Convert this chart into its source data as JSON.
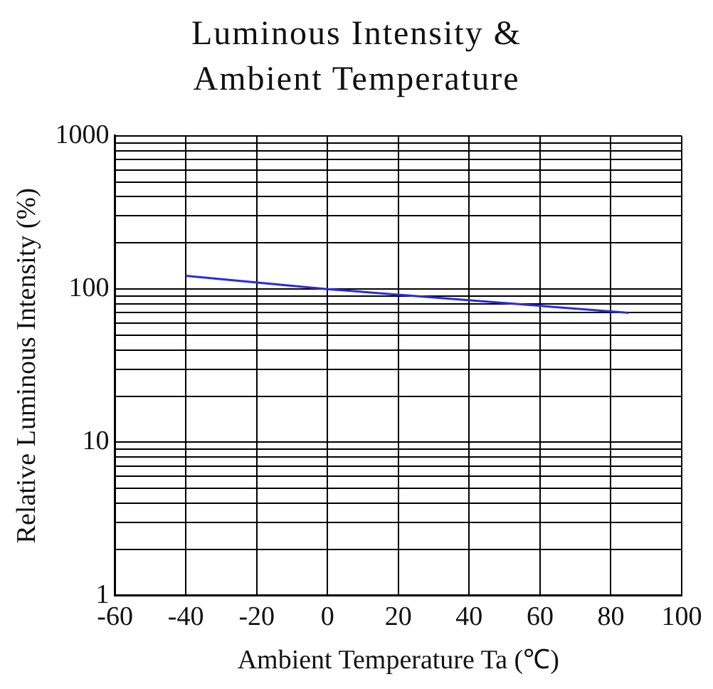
{
  "chart_data": {
    "type": "line",
    "title": "Luminous Intensity & Ambient Temperature",
    "xlabel": "Ambient Temperature Ta (℃)",
    "ylabel": "Relative Luminous Intensity (%)",
    "log": "y",
    "grid": true,
    "marker": "none",
    "line_style": "solid",
    "xlim": [
      -60,
      100
    ],
    "xticks": [
      -60,
      -40,
      -20,
      0,
      20,
      40,
      60,
      80,
      100
    ],
    "ylim": [
      1,
      1000
    ],
    "yticks": [
      1,
      {
        "value": 2,
        "label": null
      },
      {
        "value": 3,
        "label": null
      },
      {
        "value": 4,
        "label": null
      },
      {
        "value": 5,
        "label": null
      },
      {
        "value": 6,
        "label": null
      },
      {
        "value": 7,
        "label": null
      },
      {
        "value": 8,
        "label": null
      },
      {
        "value": 9,
        "label": null
      },
      10,
      {
        "value": 20,
        "label": null
      },
      {
        "value": 30,
        "label": null
      },
      {
        "value": 40,
        "label": null
      },
      {
        "value": 50,
        "label": null
      },
      {
        "value": 60,
        "label": null
      },
      {
        "value": 70,
        "label": null
      },
      {
        "value": 80,
        "label": null
      },
      {
        "value": 90,
        "label": null
      },
      100,
      {
        "value": 200,
        "label": null
      },
      {
        "value": 300,
        "label": null
      },
      {
        "value": 400,
        "label": null
      },
      {
        "value": 500,
        "label": null
      },
      {
        "value": 600,
        "label": null
      },
      {
        "value": 700,
        "label": null
      },
      {
        "value": 800,
        "label": null
      },
      {
        "value": 900,
        "label": null
      },
      1000
    ],
    "x": [
      -40,
      0,
      85
    ],
    "series": [
      {
        "color": "#2a2ae0",
        "values": [
          122,
          100,
          70
        ]
      }
    ]
  }
}
